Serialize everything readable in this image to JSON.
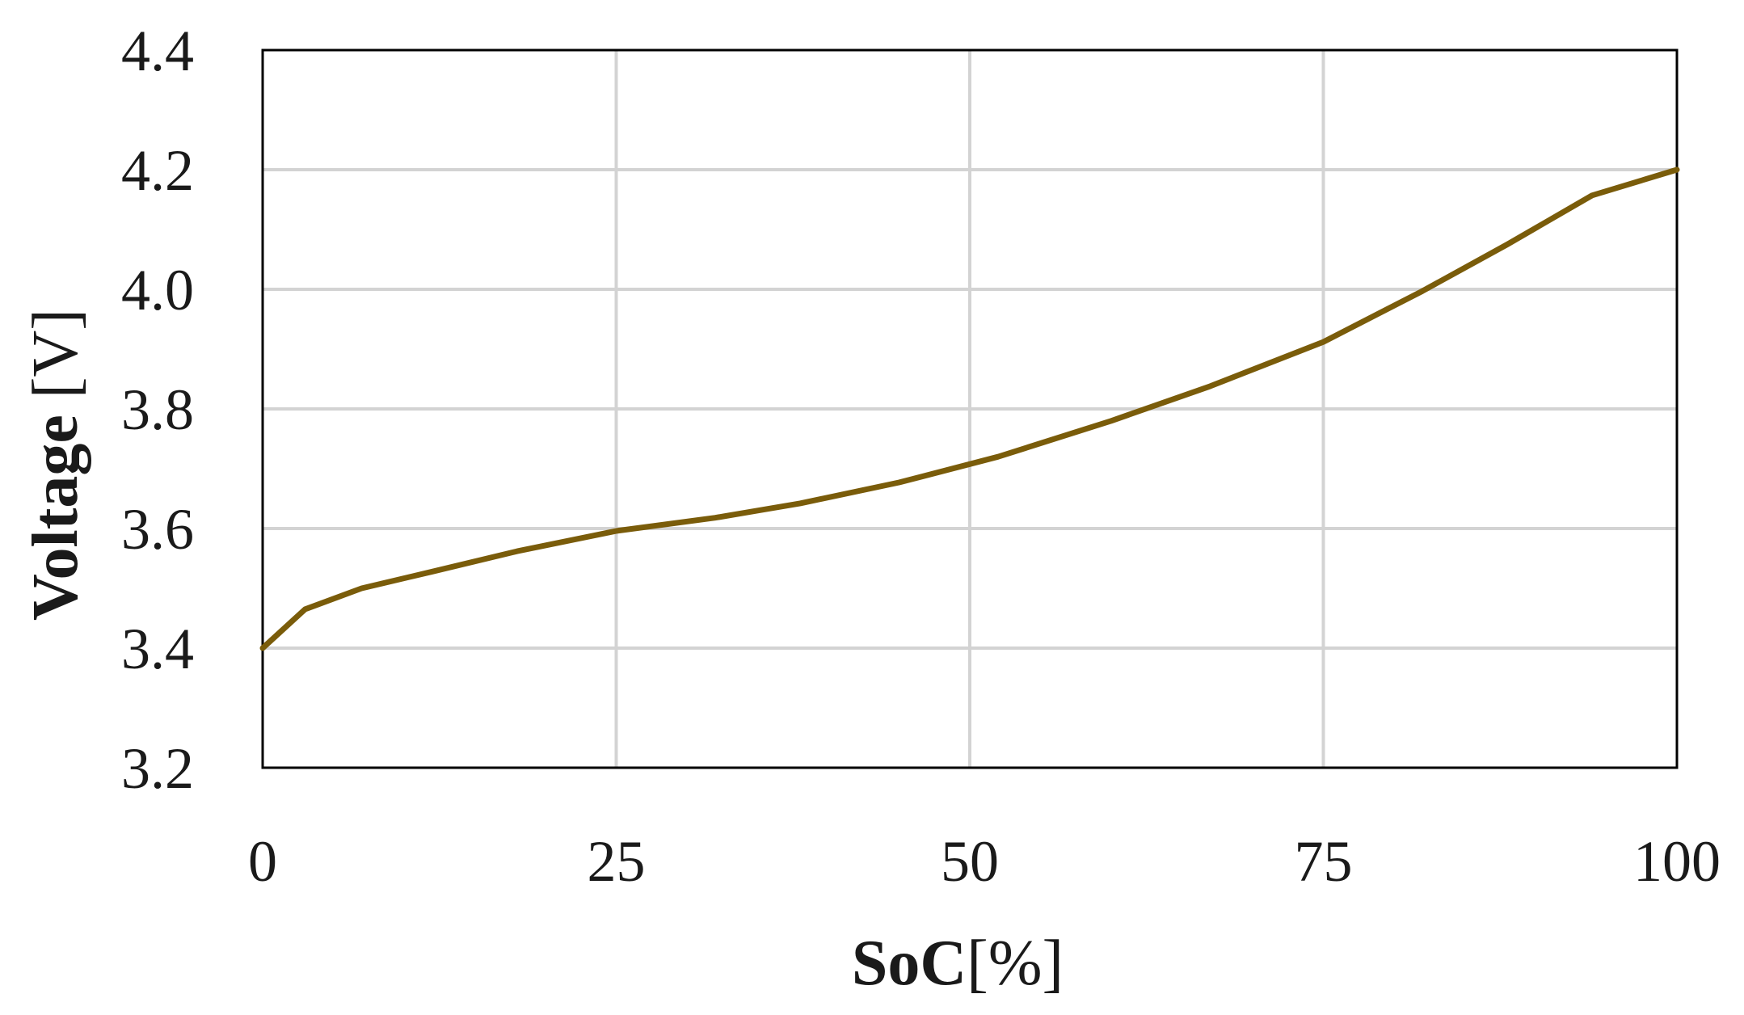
{
  "chart_data": {
    "type": "line",
    "xlabel": {
      "bold": "SoC",
      "normal": "[%]"
    },
    "ylabel": {
      "bold": "Voltage",
      "normal": " [V]"
    },
    "xlim": [
      0,
      100
    ],
    "ylim": [
      3.2,
      4.4
    ],
    "x_ticks": [
      "0",
      "25",
      "50",
      "75",
      "100"
    ],
    "y_ticks": [
      "3.2",
      "3.4",
      "3.6",
      "3.8",
      "4.0",
      "4.2",
      "4.4"
    ],
    "grid": true,
    "legend": "none",
    "series": [
      {
        "color": "#7a5c0a",
        "x": [
          0,
          3,
          7,
          12,
          18,
          25,
          32,
          38,
          45,
          52,
          60,
          67,
          75,
          82,
          88,
          94,
          100
        ],
        "y": [
          3.4,
          3.465,
          3.5,
          3.528,
          3.562,
          3.596,
          3.618,
          3.642,
          3.677,
          3.72,
          3.78,
          3.838,
          3.912,
          3.997,
          4.075,
          4.157,
          4.2
        ]
      }
    ]
  }
}
